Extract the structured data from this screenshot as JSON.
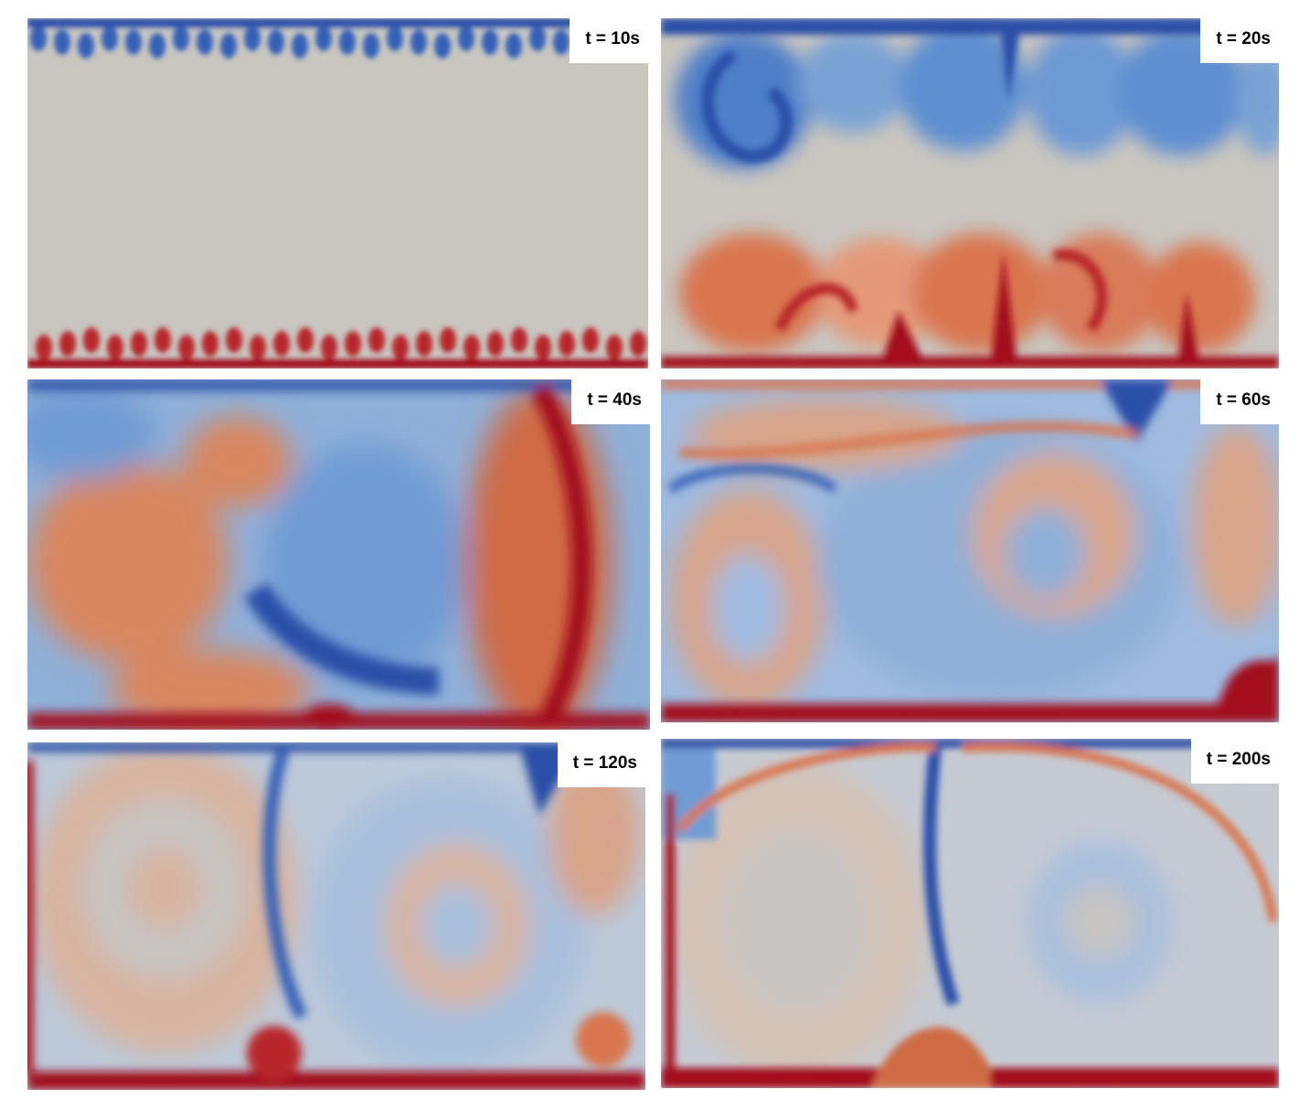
{
  "colors": {
    "hot": "#b2141d",
    "warm": "#d9764f",
    "neutral": "#c9c6c0",
    "cool": "#7aa3d4",
    "cold": "#2b4fa8"
  },
  "panels": [
    {
      "label": "t = 10s"
    },
    {
      "label": "t = 20s"
    },
    {
      "label": "t = 40s"
    },
    {
      "label": "t = 60s"
    },
    {
      "label": "t = 120s"
    },
    {
      "label": "t = 200s"
    }
  ]
}
